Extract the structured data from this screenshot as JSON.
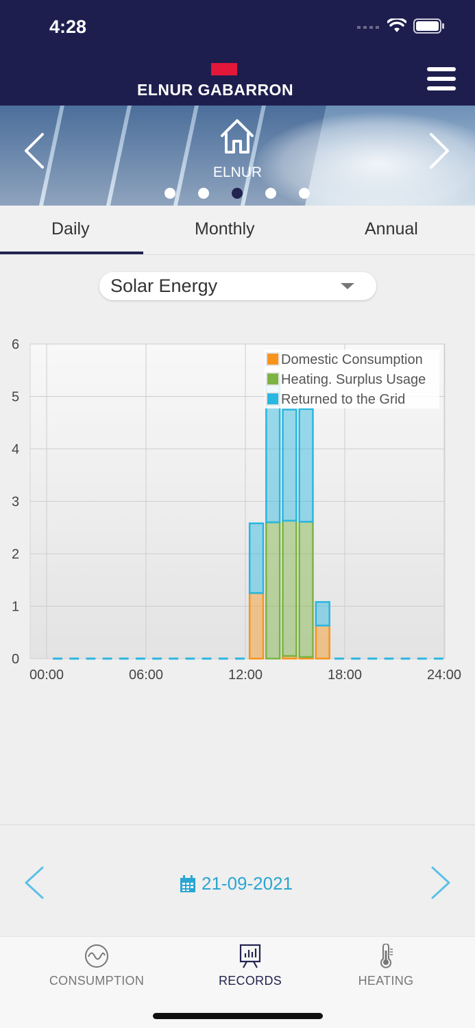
{
  "status_bar": {
    "time": "4:28"
  },
  "header": {
    "brand": "ELNUR GABARRON",
    "brand_color": "#e2173a",
    "background": "#1e1e4e"
  },
  "banner": {
    "device_name": "ELNUR",
    "page_count": 5,
    "active_page": 3
  },
  "tabs": [
    {
      "label": "Daily",
      "active": true
    },
    {
      "label": "Monthly",
      "active": false
    },
    {
      "label": "Annual",
      "active": false
    }
  ],
  "selector": {
    "value": "Solar Energy"
  },
  "chart_data": {
    "type": "bar",
    "stacked": true,
    "title": "",
    "xlabel": "",
    "ylabel": "",
    "ylim": [
      0,
      6
    ],
    "xlim": [
      0,
      24
    ],
    "y_ticks": [
      "0",
      "1",
      "2",
      "3",
      "4",
      "5",
      "6"
    ],
    "x_ticks": [
      "00:00",
      "06:00",
      "12:00",
      "18:00",
      "24:00"
    ],
    "x_tick_values": [
      0,
      6,
      12,
      18,
      24
    ],
    "grid": true,
    "legend_position": "top-right",
    "x_hours": [
      0,
      1,
      2,
      3,
      4,
      5,
      6,
      7,
      8,
      9,
      10,
      11,
      12,
      13,
      14,
      15,
      16,
      17,
      18,
      19,
      20,
      21,
      22,
      23
    ],
    "series": [
      {
        "name": "Domestic Consumption",
        "color": "#f7941d",
        "values": [
          0,
          0,
          0,
          0,
          0,
          0,
          0,
          0,
          0,
          0,
          0,
          0,
          1.25,
          0,
          0.05,
          0.03,
          0.63,
          0,
          0,
          0,
          0,
          0,
          0,
          0
        ]
      },
      {
        "name": "Heating. Surplus Usage",
        "color": "#7cb342",
        "values": [
          0,
          0,
          0,
          0,
          0,
          0,
          0,
          0,
          0,
          0,
          0,
          0,
          0,
          2.6,
          2.58,
          2.58,
          0,
          0,
          0,
          0,
          0,
          0,
          0,
          0
        ]
      },
      {
        "name": "Returned to the Grid",
        "color": "#29b6e0",
        "values": [
          0,
          0,
          0,
          0,
          0,
          0,
          0,
          0,
          0,
          0,
          0,
          0,
          1.33,
          2.73,
          2.12,
          2.15,
          0.45,
          0,
          0,
          0,
          0,
          0,
          0,
          0
        ]
      }
    ]
  },
  "date_nav": {
    "date": "21-09-2021",
    "accent": "#2aa6d2"
  },
  "bottom_nav": [
    {
      "label": "CONSUMPTION",
      "icon": "consumption-icon",
      "active": false
    },
    {
      "label": "RECORDS",
      "icon": "records-icon",
      "active": true
    },
    {
      "label": "HEATING",
      "icon": "thermometer-icon",
      "active": false
    }
  ]
}
